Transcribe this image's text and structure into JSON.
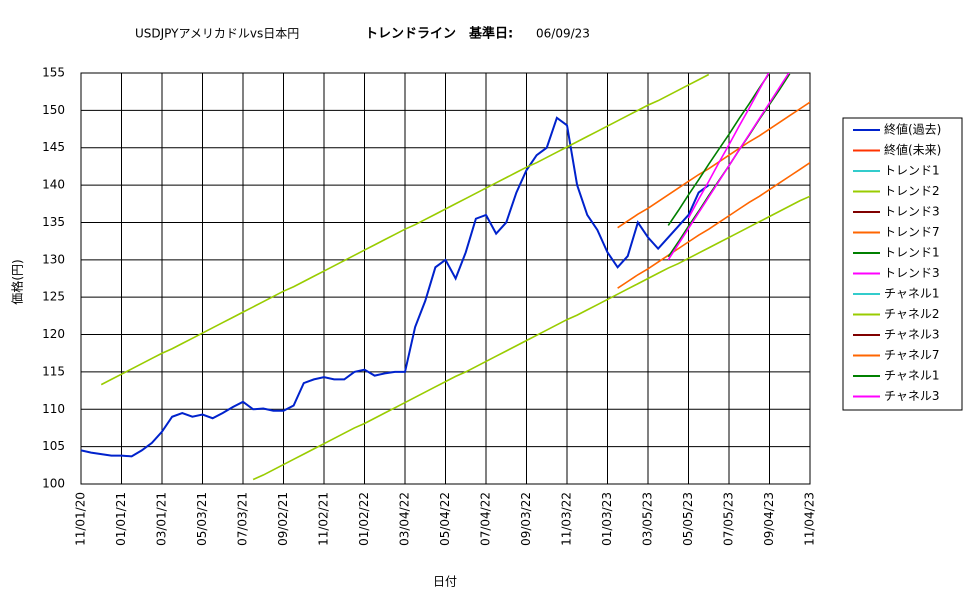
{
  "chart_data": {
    "type": "line",
    "title": "USDJPYアメリカドルvs日本円",
    "subtitle": "トレンドライン　基準日:",
    "base_date": "06/09/23",
    "xlabel": "日付",
    "ylabel": "価格(円)",
    "ylim": [
      100,
      155
    ],
    "yticks": [
      100,
      105,
      110,
      115,
      120,
      125,
      130,
      135,
      140,
      145,
      150,
      155
    ],
    "grid": true,
    "legend": "right",
    "categories": [
      "11/01/20",
      null,
      null,
      null,
      "01/01/21",
      null,
      null,
      null,
      "03/01/21",
      null,
      null,
      null,
      "05/03/21",
      null,
      null,
      null,
      "07/03/21",
      null,
      null,
      null,
      "09/02/21",
      null,
      null,
      null,
      "11/02/21",
      null,
      null,
      null,
      "01/02/22",
      null,
      null,
      null,
      "03/04/22",
      null,
      null,
      null,
      "05/04/22",
      null,
      null,
      null,
      "07/04/22",
      null,
      null,
      null,
      "09/03/22",
      null,
      null,
      null,
      "11/03/22",
      null,
      null,
      null,
      "01/03/23",
      null,
      null,
      null,
      "03/05/23",
      null,
      null,
      null,
      "05/05/23",
      null,
      null,
      null,
      "07/05/23",
      null,
      null,
      null,
      "09/04/23",
      null,
      null,
      null,
      "11/04/23"
    ],
    "series": [
      {
        "name": "終値(過去)",
        "color": "#0022cc",
        "values": [
          104.5,
          104.2,
          104.0,
          103.8,
          103.8,
          103.7,
          104.5,
          105.5,
          107,
          109,
          109.5,
          109,
          109.3,
          108.8,
          109.5,
          110.3,
          111,
          110,
          110.1,
          109.8,
          109.8,
          110.5,
          113.5,
          114,
          114.3,
          114,
          114,
          115,
          115.3,
          114.5,
          114.8,
          115,
          115,
          121,
          124.5,
          129,
          130,
          127.5,
          131,
          135.5,
          136,
          133.5,
          135,
          139,
          142,
          144,
          145,
          149,
          148,
          140,
          136,
          134,
          131,
          129,
          130.5,
          135,
          133,
          131.5,
          133,
          134.5,
          136,
          139,
          140,
          null,
          null,
          null,
          null,
          null,
          null,
          null,
          null,
          null,
          null
        ]
      },
      {
        "name": "終値(未来)",
        "color": "#ff3300",
        "values": [
          null,
          null,
          null,
          null,
          null,
          null,
          null,
          null,
          null,
          null,
          null,
          null,
          null,
          null,
          null,
          null,
          null,
          null,
          null,
          null,
          null,
          null,
          null,
          null,
          null,
          null,
          null,
          null,
          null,
          null,
          null,
          null,
          null,
          null,
          null,
          null,
          null,
          null,
          null,
          null,
          null,
          null,
          null,
          null,
          null,
          null,
          null,
          null,
          null,
          null,
          null,
          null,
          null,
          null,
          null,
          null,
          null,
          null,
          null,
          null,
          null,
          null,
          null,
          null,
          null,
          null,
          null,
          null,
          null,
          null,
          null,
          null,
          null
        ]
      },
      {
        "name": "トレンド1",
        "color": "#33cccc",
        "values": [
          null,
          null,
          null,
          null,
          null,
          null,
          null,
          null,
          null,
          null,
          null,
          null,
          null,
          null,
          null,
          null,
          null,
          null,
          null,
          null,
          null,
          null,
          null,
          null,
          null,
          null,
          null,
          null,
          null,
          null,
          null,
          null,
          null,
          null,
          null,
          null,
          null,
          null,
          null,
          null,
          null,
          null,
          null,
          null,
          null,
          null,
          null,
          null,
          null,
          null,
          null,
          null,
          null,
          null,
          null,
          null,
          null,
          null,
          null,
          null,
          null,
          null,
          null,
          null,
          null,
          null,
          null,
          null,
          null,
          null,
          null,
          null,
          null
        ]
      },
      {
        "name": "トレンド2",
        "color": "#99cc00",
        "values": [
          null,
          null,
          113.3,
          114.0,
          114.7,
          115.4,
          116.1,
          116.8,
          117.5,
          118.1,
          118.8,
          119.5,
          120.2,
          120.9,
          121.6,
          122.3,
          123.0,
          123.7,
          124.4,
          125.1,
          125.8,
          126.4,
          127.1,
          127.8,
          128.5,
          129.2,
          129.9,
          130.6,
          131.3,
          132.0,
          132.7,
          133.4,
          134.1,
          134.7,
          135.4,
          136.1,
          136.8,
          137.5,
          138.2,
          138.9,
          139.6,
          140.3,
          141.0,
          141.7,
          142.4,
          143.0,
          143.7,
          144.4,
          145.1,
          145.8,
          146.5,
          147.2,
          147.9,
          148.6,
          149.3,
          150.0,
          150.7,
          151.3,
          152.0,
          152.7,
          153.4,
          154.1,
          154.8,
          null,
          null,
          null,
          null,
          null,
          null,
          null,
          null,
          null,
          null
        ]
      },
      {
        "name": "トレンド3",
        "color": "#800000",
        "values": [
          null,
          null,
          null,
          null,
          null,
          null,
          null,
          null,
          null,
          null,
          null,
          null,
          null,
          null,
          null,
          null,
          null,
          null,
          null,
          null,
          null,
          null,
          null,
          null,
          null,
          null,
          null,
          null,
          null,
          null,
          null,
          null,
          null,
          null,
          null,
          null,
          null,
          null,
          null,
          null,
          null,
          null,
          null,
          null,
          null,
          null,
          null,
          null,
          null,
          null,
          null,
          null,
          null,
          null,
          null,
          null,
          null,
          null,
          null,
          null,
          null,
          null,
          null,
          null,
          null,
          null,
          null,
          null,
          null,
          null,
          null,
          null,
          null
        ]
      },
      {
        "name": "トレンド7",
        "color": "#ff6600",
        "values": [
          null,
          null,
          null,
          null,
          null,
          null,
          null,
          null,
          null,
          null,
          null,
          null,
          null,
          null,
          null,
          null,
          null,
          null,
          null,
          null,
          null,
          null,
          null,
          null,
          null,
          null,
          null,
          null,
          null,
          null,
          null,
          null,
          null,
          null,
          null,
          null,
          null,
          null,
          null,
          null,
          null,
          null,
          null,
          null,
          null,
          null,
          null,
          null,
          null,
          null,
          null,
          null,
          null,
          134.3,
          135.2,
          136.1,
          136.9,
          137.8,
          138.7,
          139.6,
          140.5,
          141.4,
          142.2,
          143.1,
          144.0,
          144.9,
          145.8,
          146.6,
          147.5,
          148.4,
          149.3,
          150.2,
          151.1
        ]
      },
      {
        "name": "トレンド1",
        "color": "#008000",
        "values": [
          null,
          null,
          null,
          null,
          null,
          null,
          null,
          null,
          null,
          null,
          null,
          null,
          null,
          null,
          null,
          null,
          null,
          null,
          null,
          null,
          null,
          null,
          null,
          null,
          null,
          null,
          null,
          null,
          null,
          null,
          null,
          null,
          null,
          null,
          null,
          null,
          null,
          null,
          null,
          null,
          null,
          null,
          null,
          null,
          null,
          null,
          null,
          null,
          null,
          null,
          null,
          null,
          null,
          null,
          null,
          null,
          null,
          null,
          134.6,
          136.6,
          138.7,
          140.7,
          142.8,
          144.8,
          146.8,
          148.9,
          150.9,
          153.0,
          155.0,
          null,
          null,
          null,
          null
        ]
      },
      {
        "name": "トレンド3",
        "color": "#ff00ff",
        "values": [
          null,
          null,
          null,
          null,
          null,
          null,
          null,
          null,
          null,
          null,
          null,
          null,
          null,
          null,
          null,
          null,
          null,
          null,
          null,
          null,
          null,
          null,
          null,
          null,
          null,
          null,
          null,
          null,
          null,
          null,
          null,
          null,
          null,
          null,
          null,
          null,
          null,
          null,
          null,
          null,
          null,
          null,
          null,
          null,
          null,
          null,
          null,
          null,
          null,
          null,
          null,
          null,
          null,
          null,
          null,
          null,
          null,
          null,
          null,
          null,
          135.6,
          138.1,
          140.5,
          143.0,
          145.4,
          147.9,
          150.3,
          152.8,
          155.2,
          null,
          null,
          null,
          null
        ]
      },
      {
        "name": "チャネル1",
        "color": "#33cccc",
        "values": [
          null,
          null,
          null,
          null,
          null,
          null,
          null,
          null,
          null,
          null,
          null,
          null,
          null,
          null,
          null,
          null,
          null,
          null,
          null,
          null,
          null,
          null,
          null,
          null,
          null,
          null,
          null,
          null,
          null,
          null,
          null,
          null,
          null,
          null,
          null,
          null,
          null,
          null,
          null,
          null,
          null,
          null,
          null,
          null,
          null,
          null,
          null,
          null,
          null,
          null,
          null,
          null,
          null,
          null,
          null,
          null,
          null,
          null,
          null,
          null,
          null,
          null,
          null,
          null,
          null,
          null,
          null,
          null,
          null,
          null,
          null,
          null,
          null
        ]
      },
      {
        "name": "チャネル2",
        "color": "#99cc00",
        "values": [
          null,
          null,
          null,
          null,
          null,
          null,
          null,
          null,
          null,
          null,
          null,
          null,
          null,
          null,
          null,
          null,
          null,
          100.6,
          101.2,
          101.9,
          102.6,
          103.3,
          104.0,
          104.7,
          105.4,
          106.1,
          106.8,
          107.5,
          108.1,
          108.8,
          109.5,
          110.2,
          110.9,
          111.6,
          112.3,
          113.0,
          113.7,
          114.4,
          115.0,
          115.7,
          116.4,
          117.1,
          117.8,
          118.5,
          119.2,
          119.9,
          120.6,
          121.3,
          122.0,
          122.6,
          123.3,
          124.0,
          124.7,
          125.4,
          126.1,
          126.8,
          127.5,
          128.2,
          128.9,
          129.5,
          130.2,
          130.9,
          131.6,
          132.3,
          133.0,
          133.7,
          134.4,
          135.1,
          135.8,
          136.5,
          137.2,
          137.9,
          138.5
        ]
      },
      {
        "name": "チャネル3",
        "color": "#800000",
        "values": [
          null,
          null,
          null,
          null,
          null,
          null,
          null,
          null,
          null,
          null,
          null,
          null,
          null,
          null,
          null,
          null,
          null,
          null,
          null,
          null,
          null,
          null,
          null,
          null,
          null,
          null,
          null,
          null,
          null,
          null,
          null,
          null,
          null,
          null,
          null,
          null,
          null,
          null,
          null,
          null,
          null,
          null,
          null,
          null,
          null,
          null,
          null,
          null,
          null,
          null,
          null,
          null,
          null,
          null,
          null,
          null,
          null,
          null,
          null,
          null,
          null,
          null,
          null,
          null,
          null,
          null,
          null,
          null,
          null,
          null,
          null,
          null,
          null
        ]
      },
      {
        "name": "チャネル7",
        "color": "#ff6600",
        "values": [
          null,
          null,
          null,
          null,
          null,
          null,
          null,
          null,
          null,
          null,
          null,
          null,
          null,
          null,
          null,
          null,
          null,
          null,
          null,
          null,
          null,
          null,
          null,
          null,
          null,
          null,
          null,
          null,
          null,
          null,
          null,
          null,
          null,
          null,
          null,
          null,
          null,
          null,
          null,
          null,
          null,
          null,
          null,
          null,
          null,
          null,
          null,
          null,
          null,
          null,
          null,
          null,
          null,
          126.2,
          127.1,
          128.0,
          128.8,
          129.7,
          130.6,
          131.5,
          132.4,
          133.3,
          134.1,
          135.0,
          135.9,
          136.8,
          137.7,
          138.5,
          139.4,
          140.3,
          141.2,
          142.1,
          143.0
        ]
      },
      {
        "name": "チャネル1",
        "color": "#008000",
        "values": [
          null,
          null,
          null,
          null,
          null,
          null,
          null,
          null,
          null,
          null,
          null,
          null,
          null,
          null,
          null,
          null,
          null,
          null,
          null,
          null,
          null,
          null,
          null,
          null,
          null,
          null,
          null,
          null,
          null,
          null,
          null,
          null,
          null,
          null,
          null,
          null,
          null,
          null,
          null,
          null,
          null,
          null,
          null,
          null,
          null,
          null,
          null,
          null,
          null,
          null,
          null,
          null,
          null,
          null,
          null,
          null,
          null,
          null,
          130.4,
          132.4,
          134.5,
          136.5,
          138.6,
          140.6,
          142.6,
          144.7,
          146.7,
          148.8,
          150.8,
          152.8,
          154.9,
          null,
          null
        ]
      },
      {
        "name": "チャネル3",
        "color": "#ff00ff",
        "values": [
          null,
          null,
          null,
          null,
          null,
          null,
          null,
          null,
          null,
          null,
          null,
          null,
          null,
          null,
          null,
          null,
          null,
          null,
          null,
          null,
          null,
          null,
          null,
          null,
          null,
          null,
          null,
          null,
          null,
          null,
          null,
          null,
          null,
          null,
          null,
          null,
          null,
          null,
          null,
          null,
          null,
          null,
          null,
          null,
          null,
          null,
          null,
          null,
          null,
          null,
          null,
          null,
          null,
          null,
          null,
          null,
          null,
          null,
          130.0,
          132.1,
          134.2,
          136.3,
          138.4,
          140.5,
          142.6,
          144.7,
          146.8,
          148.9,
          151.0,
          153.1,
          155.2,
          null,
          null
        ]
      }
    ]
  }
}
